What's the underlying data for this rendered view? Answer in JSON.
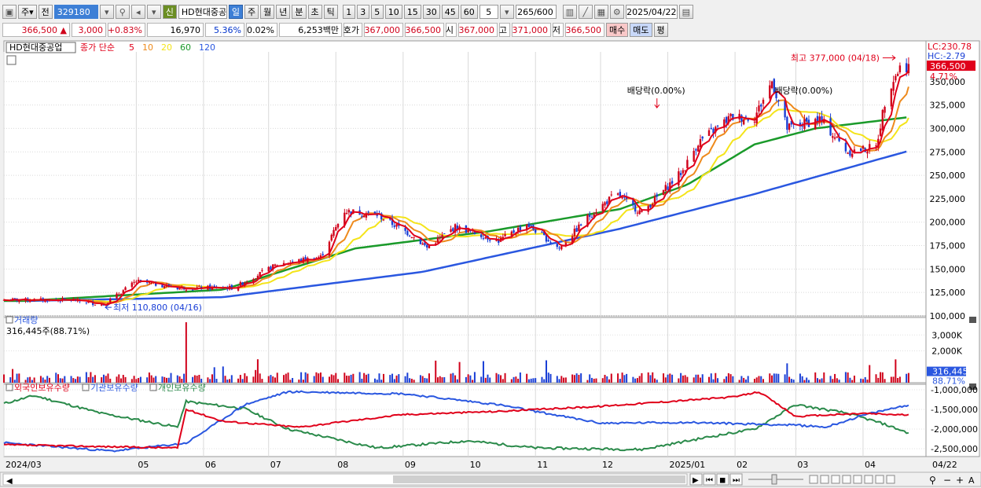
{
  "toolbar": {
    "market": "주",
    "jeon": "전",
    "code": "329180",
    "credit": "신",
    "stock_name": "HD현대중공",
    "periods": [
      "일",
      "주",
      "월",
      "년",
      "분",
      "초",
      "틱"
    ],
    "active_period": "일",
    "intervals": [
      "1",
      "3",
      "5",
      "10",
      "15",
      "30",
      "45",
      "60"
    ],
    "interval_value": "5",
    "count": "265",
    "count_total": "/600",
    "date": "2025/04/22"
  },
  "quote": {
    "price": "366,500",
    "arrow": "▲",
    "change": "3,000",
    "change_pct": "+0.83%",
    "volume": "16,970",
    "turnover_pct": "5.36%",
    "other_pct": "0.02%",
    "amount": "6,253백만",
    "ask_label": "호가",
    "ask": "367,000",
    "bid": "366,500",
    "open_label": "시",
    "open": "367,000",
    "high_label": "고",
    "high": "371,000",
    "low_label": "저",
    "low": "366,500",
    "buy_label": "매수",
    "sell_label": "매도",
    "flat_label": "평"
  },
  "colors": {
    "ma5": "#e0001a",
    "ma10": "#ee8a1c",
    "ma20": "#f4e41a",
    "ma60": "#1a9a2a",
    "ma120": "#2a57e0",
    "up": "#d0021b",
    "down": "#1a3fd6",
    "foreign": "#e0001a",
    "inst": "#2a57e0",
    "indiv": "#2a8a4a"
  },
  "chart_data": [
    {
      "type": "candlestick",
      "legend": {
        "name": "HD현대중공업",
        "ma_label": "종가 단순",
        "periods": [
          "5",
          "10",
          "20",
          "60",
          "120"
        ]
      },
      "x_labels": [
        "2024/03",
        "05",
        "06",
        "07",
        "08",
        "09",
        "10",
        "11",
        "12",
        "2025/01",
        "02",
        "03",
        "04",
        "04/22"
      ],
      "x_label_months": [
        "2024-03",
        "2024-05",
        "2024-06",
        "2024-07",
        "2024-08",
        "2024-09",
        "2024-10",
        "2024-11",
        "2024-12",
        "2025-01",
        "2025-02",
        "2025-03",
        "2025-04"
      ],
      "ylim": [
        100000,
        380000
      ],
      "y_ticks": [
        "100,000",
        "125,000",
        "150,000",
        "175,000",
        "200,000",
        "225,000",
        "250,000",
        "275,000",
        "300,000",
        "325,000",
        "350,000"
      ],
      "y_tick_values": [
        100000,
        125000,
        150000,
        175000,
        200000,
        225000,
        250000,
        275000,
        300000,
        325000,
        350000
      ],
      "lc_label": "LC:230.78",
      "hc_label": "HC:-2.79",
      "current_price_label": "366,500",
      "current_pct_label": "4.71%",
      "anchors": [
        [
          "2024-04-01",
          117000
        ],
        [
          "2024-04-16",
          112000
        ],
        [
          "2024-05-01",
          137000
        ],
        [
          "2024-05-20",
          130000
        ],
        [
          "2024-06-15",
          130000
        ],
        [
          "2024-07-05",
          155000
        ],
        [
          "2024-07-25",
          163000
        ],
        [
          "2024-08-05",
          212000
        ],
        [
          "2024-08-20",
          208000
        ],
        [
          "2024-09-05",
          186000
        ],
        [
          "2024-09-12",
          173000
        ],
        [
          "2024-09-25",
          195000
        ],
        [
          "2024-10-15",
          180000
        ],
        [
          "2024-10-28",
          198000
        ],
        [
          "2024-11-12",
          172000
        ],
        [
          "2024-11-25",
          205000
        ],
        [
          "2024-12-08",
          230000
        ],
        [
          "2024-12-20",
          210000
        ],
        [
          "2025-01-08",
          255000
        ],
        [
          "2025-01-15",
          285000
        ],
        [
          "2025-01-30",
          312000
        ],
        [
          "2025-02-10",
          312000
        ],
        [
          "2025-02-18",
          350000
        ],
        [
          "2025-02-25",
          300000
        ],
        [
          "2025-03-12",
          310000
        ],
        [
          "2025-03-25",
          275000
        ],
        [
          "2025-04-07",
          280000
        ],
        [
          "2025-04-12",
          340000
        ],
        [
          "2025-04-18",
          365000
        ],
        [
          "2025-04-22",
          366500
        ]
      ],
      "ma60_anchors": [
        [
          "2024-03-10",
          116000
        ],
        [
          "2024-06-10",
          128000
        ],
        [
          "2024-08-10",
          172000
        ],
        [
          "2024-10-10",
          190000
        ],
        [
          "2024-12-10",
          214000
        ],
        [
          "2025-01-10",
          240000
        ],
        [
          "2025-02-10",
          283000
        ],
        [
          "2025-03-10",
          300000
        ],
        [
          "2025-04-22",
          312000
        ]
      ],
      "ma120_anchors": [
        [
          "2024-03-10",
          116000
        ],
        [
          "2024-06-10",
          120000
        ],
        [
          "2024-09-10",
          147000
        ],
        [
          "2024-12-10",
          193000
        ],
        [
          "2025-02-10",
          230000
        ],
        [
          "2025-04-22",
          276000
        ]
      ],
      "annotations": [
        {
          "text": "최고 377,000 (04/18)",
          "date": "2025-04-18",
          "value": 377000
        },
        {
          "text": "최저 110,800 (04/16)",
          "date": "2024-04-16",
          "value": 110800
        },
        {
          "text": "배당락(0.00%)",
          "date": "2024-12-27",
          "value": 300000
        },
        {
          "text": "배당락(0.00%)",
          "date": "2025-03-05",
          "value": 300000
        }
      ]
    },
    {
      "type": "bar",
      "name": "거래량",
      "summary": "316,445주(88.71%)",
      "ylim": [
        0,
        4000000
      ],
      "y_ticks": [
        "3,000K",
        "2,000K"
      ],
      "y_tick_values": [
        3000000,
        2000000
      ],
      "current_label": "316,445",
      "current_pct_label": "88.71%",
      "spike": {
        "date": "2024-05-24",
        "value": 3800000
      },
      "base_level": 420000
    },
    {
      "type": "line",
      "series_names": [
        "외국인보유수량",
        "기관보유수량",
        "개인보유수량"
      ],
      "ylim": [
        -2700000,
        -900000
      ],
      "y_ticks": [
        "-1,000,000",
        "-1,500,000",
        "-2,000,000",
        "-2,500,000"
      ],
      "y_tick_values": [
        -1000000,
        -1500000,
        -2000000,
        -2500000
      ],
      "foreign": [
        [
          "2024-03-01",
          -2400000
        ],
        [
          "2024-05-20",
          -2480000
        ],
        [
          "2024-05-24",
          -1500000
        ],
        [
          "2024-06-10",
          -1800000
        ],
        [
          "2024-07-15",
          -1950000
        ],
        [
          "2024-09-01",
          -1630000
        ],
        [
          "2024-10-15",
          -1550000
        ],
        [
          "2024-12-01",
          -1420000
        ],
        [
          "2025-02-01",
          -1180000
        ],
        [
          "2025-02-12",
          -1050000
        ],
        [
          "2025-03-01",
          -1680000
        ],
        [
          "2025-04-01",
          -1600000
        ],
        [
          "2025-04-15",
          -1630000
        ],
        [
          "2025-04-22",
          -1640000
        ]
      ],
      "inst": [
        [
          "2024-03-01",
          -2350000
        ],
        [
          "2024-04-20",
          -2560000
        ],
        [
          "2024-05-24",
          -2360000
        ],
        [
          "2024-06-20",
          -1380000
        ],
        [
          "2024-07-10",
          -1050000
        ],
        [
          "2024-09-01",
          -1100000
        ],
        [
          "2024-10-15",
          -1380000
        ],
        [
          "2024-12-01",
          -1850000
        ],
        [
          "2025-01-10",
          -1830000
        ],
        [
          "2025-03-01",
          -1900000
        ],
        [
          "2025-03-15",
          -1950000
        ],
        [
          "2025-04-01",
          -1650000
        ],
        [
          "2025-04-22",
          -1380000
        ]
      ],
      "indiv": [
        [
          "2024-03-01",
          -1350000
        ],
        [
          "2024-03-15",
          -1150000
        ],
        [
          "2024-04-15",
          -1600000
        ],
        [
          "2024-05-20",
          -1950000
        ],
        [
          "2024-05-24",
          -1300000
        ],
        [
          "2024-06-20",
          -1480000
        ],
        [
          "2024-07-10",
          -2000000
        ],
        [
          "2024-08-20",
          -2480000
        ],
        [
          "2024-10-01",
          -2300000
        ],
        [
          "2024-11-01",
          -2480000
        ],
        [
          "2024-12-20",
          -2520000
        ],
        [
          "2025-01-20",
          -2200000
        ],
        [
          "2025-02-10",
          -2000000
        ],
        [
          "2025-03-01",
          -1380000
        ],
        [
          "2025-03-25",
          -1600000
        ],
        [
          "2025-04-10",
          -1860000
        ],
        [
          "2025-04-22",
          -2100000
        ]
      ]
    }
  ],
  "nav": {
    "zoom_out": "−",
    "zoom_in": "+",
    "auto": "A"
  }
}
